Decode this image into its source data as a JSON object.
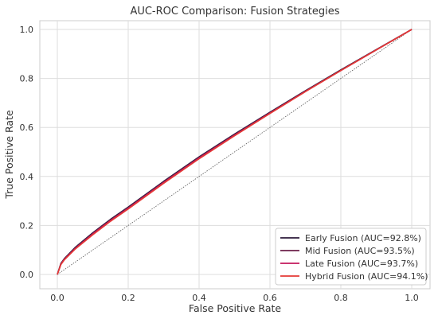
{
  "chart_data": {
    "type": "line",
    "title": "AUC-ROC Comparison: Fusion Strategies",
    "xlabel": "False Positive Rate",
    "ylabel": "True Positive Rate",
    "xlim": [
      0,
      1
    ],
    "ylim": [
      0,
      1
    ],
    "xticks": [
      "0.0",
      "0.2",
      "0.4",
      "0.6",
      "0.8",
      "1.0"
    ],
    "yticks": [
      "0.0",
      "0.2",
      "0.4",
      "0.6",
      "0.8",
      "1.0"
    ],
    "grid": true,
    "legend_position": "lower-right",
    "reference_line": {
      "style": "dotted",
      "color": "#555555",
      "points": [
        [
          0,
          0
        ],
        [
          1,
          1
        ]
      ]
    },
    "series": [
      {
        "name": "Early Fusion (AUC=92.8%)",
        "color": "#2b1a3a",
        "x": [
          0,
          0.01,
          0.02,
          0.05,
          0.1,
          0.15,
          0.2,
          0.3,
          0.4,
          0.5,
          0.6,
          0.7,
          0.8,
          0.9,
          1.0
        ],
        "y": [
          0,
          0.045,
          0.065,
          0.11,
          0.17,
          0.225,
          0.275,
          0.38,
          0.48,
          0.573,
          0.662,
          0.75,
          0.835,
          0.918,
          1.0
        ]
      },
      {
        "name": "Mid Fusion (AUC=93.5%)",
        "color": "#6b1f4a",
        "x": [
          0,
          0.01,
          0.02,
          0.05,
          0.1,
          0.15,
          0.2,
          0.3,
          0.4,
          0.5,
          0.6,
          0.7,
          0.8,
          0.9,
          1.0
        ],
        "y": [
          0,
          0.043,
          0.063,
          0.107,
          0.167,
          0.222,
          0.272,
          0.377,
          0.477,
          0.57,
          0.66,
          0.748,
          0.833,
          0.917,
          1.0
        ]
      },
      {
        "name": "Late Fusion (AUC=93.7%)",
        "color": "#c2185b",
        "x": [
          0,
          0.01,
          0.02,
          0.05,
          0.1,
          0.15,
          0.2,
          0.3,
          0.4,
          0.5,
          0.6,
          0.7,
          0.8,
          0.9,
          1.0
        ],
        "y": [
          0,
          0.042,
          0.062,
          0.105,
          0.165,
          0.22,
          0.27,
          0.375,
          0.475,
          0.568,
          0.658,
          0.747,
          0.832,
          0.916,
          1.0
        ]
      },
      {
        "name": "Hybrid Fusion (AUC=94.1%)",
        "color": "#e53935",
        "x": [
          0,
          0.01,
          0.02,
          0.05,
          0.1,
          0.15,
          0.2,
          0.3,
          0.4,
          0.5,
          0.6,
          0.7,
          0.8,
          0.9,
          1.0
        ],
        "y": [
          0,
          0.04,
          0.06,
          0.103,
          0.162,
          0.217,
          0.267,
          0.372,
          0.472,
          0.566,
          0.657,
          0.746,
          0.832,
          0.916,
          1.0
        ]
      }
    ]
  }
}
